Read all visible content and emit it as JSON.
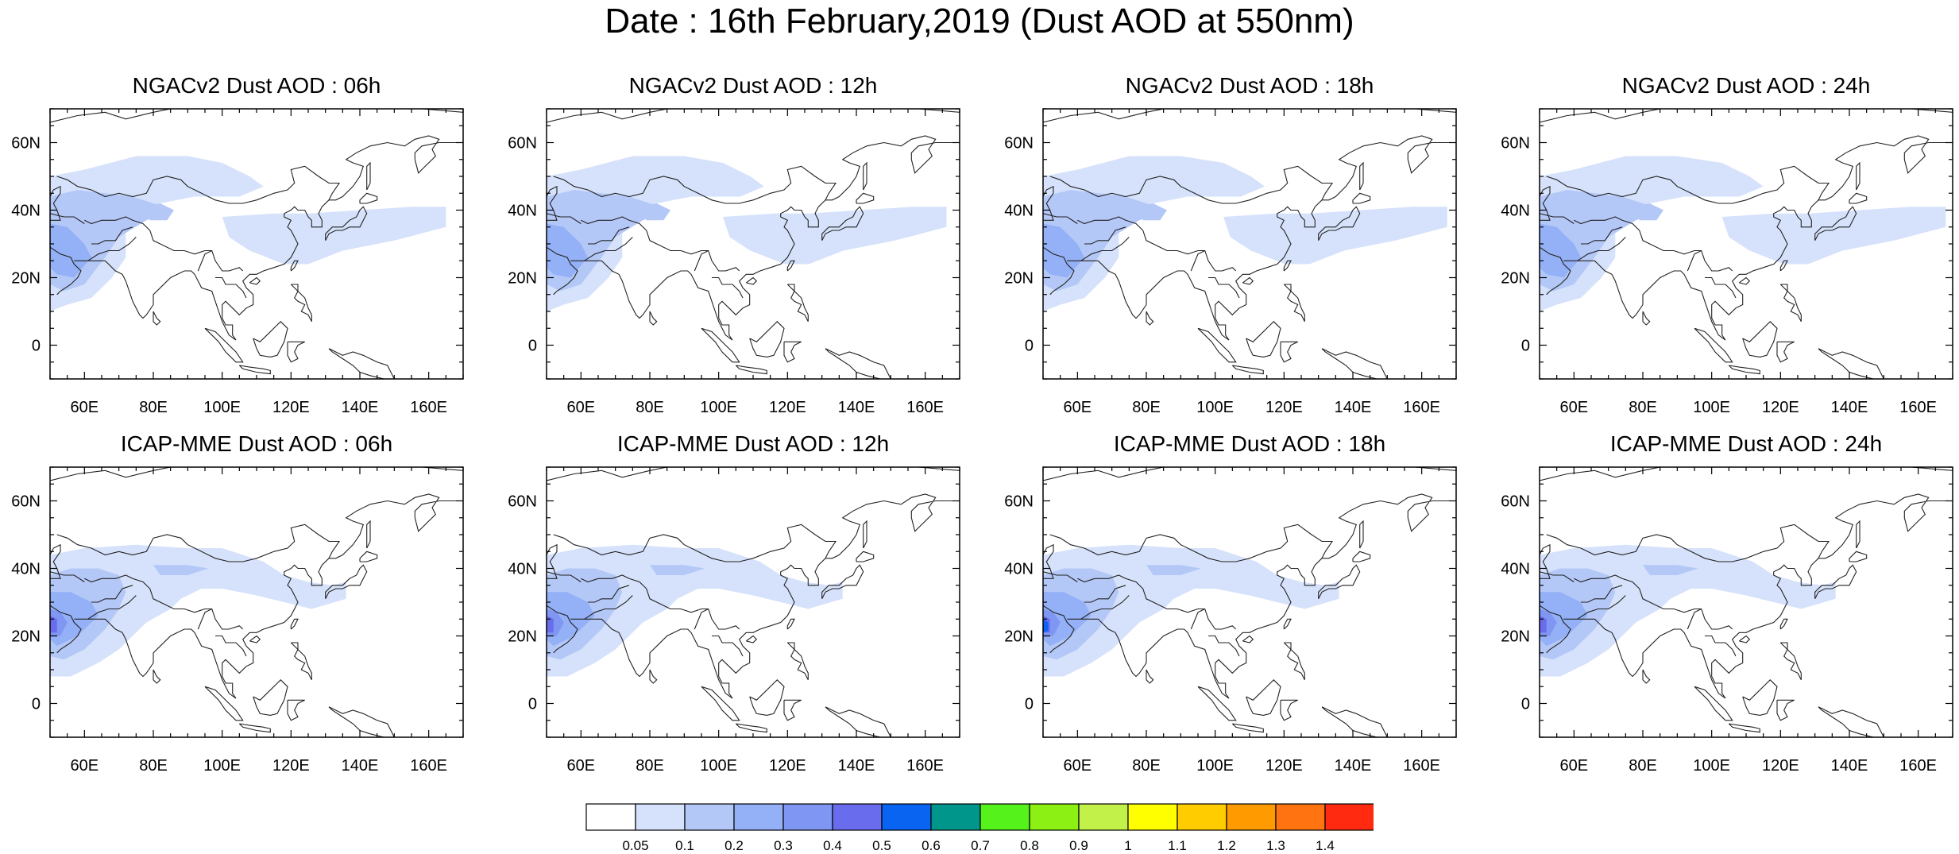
{
  "title": "Date : 16th February,2019 (Dust AOD at 550nm)",
  "panels": [
    {
      "title": "NGACv2 Dust AOD : 06h",
      "model": "NGACv2",
      "hour": "06h"
    },
    {
      "title": "NGACv2 Dust AOD : 12h",
      "model": "NGACv2",
      "hour": "12h"
    },
    {
      "title": "NGACv2 Dust AOD : 18h",
      "model": "NGACv2",
      "hour": "18h"
    },
    {
      "title": "NGACv2 Dust AOD : 24h",
      "model": "NGACv2",
      "hour": "24h"
    },
    {
      "title": "ICAP-MME Dust AOD : 06h",
      "model": "ICAP-MME",
      "hour": "06h"
    },
    {
      "title": "ICAP-MME Dust AOD : 12h",
      "model": "ICAP-MME",
      "hour": "12h"
    },
    {
      "title": "ICAP-MME Dust AOD : 18h",
      "model": "ICAP-MME",
      "hour": "18h"
    },
    {
      "title": "ICAP-MME Dust AOD : 24h",
      "model": "ICAP-MME",
      "hour": "24h"
    }
  ],
  "map": {
    "lon_range": [
      50,
      170
    ],
    "lat_range": [
      -10,
      70
    ],
    "lon_ticks": [
      {
        "value": 60,
        "label": "60E"
      },
      {
        "value": 80,
        "label": "80E"
      },
      {
        "value": 100,
        "label": "100E"
      },
      {
        "value": 120,
        "label": "120E"
      },
      {
        "value": 140,
        "label": "140E"
      },
      {
        "value": 160,
        "label": "160E"
      }
    ],
    "lat_ticks": [
      {
        "value": 60,
        "label": "60N"
      },
      {
        "value": 40,
        "label": "40N"
      },
      {
        "value": 20,
        "label": "20N"
      },
      {
        "value": 0,
        "label": "0"
      }
    ]
  },
  "colorbar": {
    "labels": [
      "0.05",
      "0.1",
      "0.2",
      "0.3",
      "0.4",
      "0.5",
      "0.6",
      "0.7",
      "0.8",
      "0.9",
      "1",
      "1.1",
      "1.2",
      "1.3",
      "1.4"
    ],
    "colors": [
      "#ffffff",
      "#d6e2fb",
      "#b4c8f8",
      "#94b0f6",
      "#7f96f2",
      "#6a6cee",
      "#0a64f2",
      "#00968c",
      "#55f21c",
      "#8cf014",
      "#c2f24a",
      "#ffff00",
      "#ffcc00",
      "#ff9a00",
      "#ff7410",
      "#ff2a10"
    ]
  }
}
